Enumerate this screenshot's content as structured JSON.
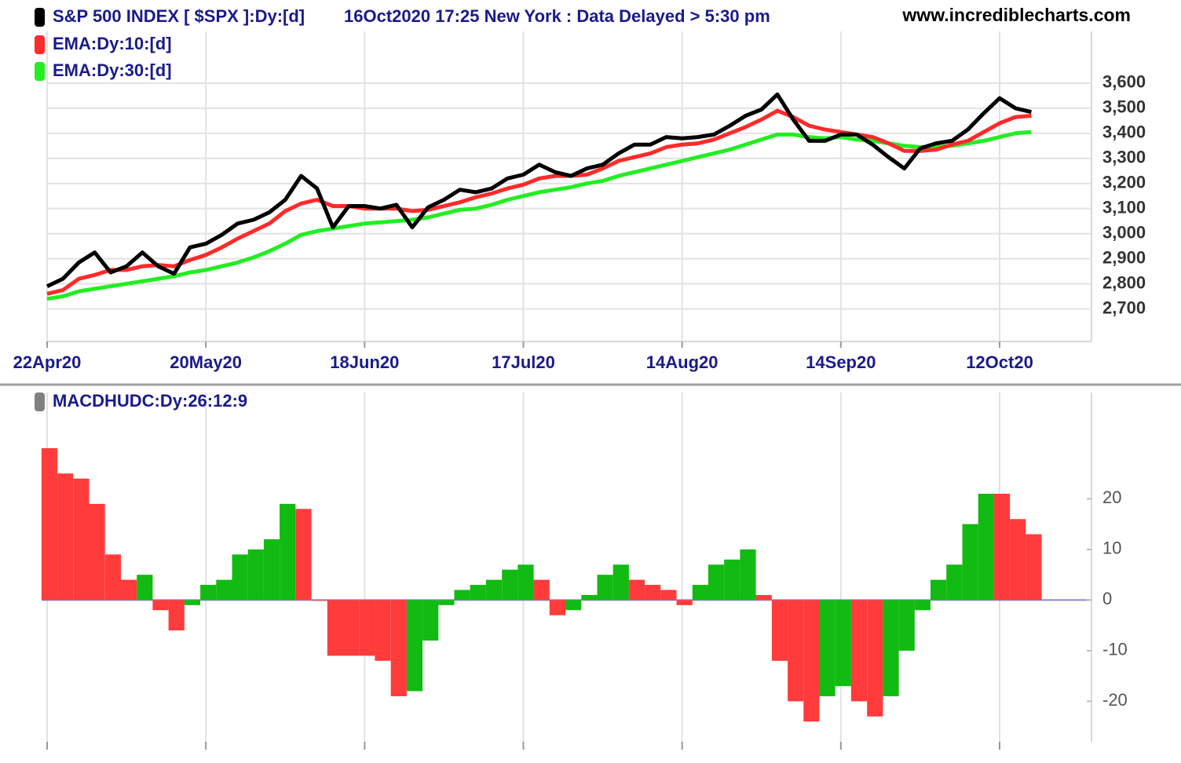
{
  "chart_data": [
    {
      "type": "line",
      "title": "S&P 500 INDEX [ $SPX ]:Dy:[d]",
      "subtitle": "16Oct2020 17:25 New York : Data Delayed > 5:30 pm",
      "source": "www.incrediblecharts.com",
      "categories": [
        "22Apr20",
        null,
        null,
        null,
        null,
        null,
        null,
        null,
        null,
        null,
        "20May20",
        null,
        null,
        null,
        null,
        null,
        null,
        null,
        null,
        null,
        "18Jun20",
        null,
        null,
        null,
        null,
        null,
        null,
        null,
        null,
        null,
        "17Jul20",
        null,
        null,
        null,
        null,
        null,
        null,
        null,
        null,
        null,
        "14Aug20",
        null,
        null,
        null,
        null,
        null,
        null,
        null,
        null,
        null,
        "14Sep20",
        null,
        null,
        null,
        null,
        null,
        null,
        null,
        null,
        null,
        "12Oct20",
        null,
        null
      ],
      "series": [
        {
          "name": "S&P 500 INDEX [ $SPX ]:Dy:[d]",
          "color": "#000000",
          "values": [
            2790,
            2820,
            2885,
            2925,
            2845,
            2870,
            2925,
            2870,
            2840,
            2945,
            2960,
            2995,
            3040,
            3055,
            3085,
            3135,
            3230,
            3180,
            3025,
            3110,
            3110,
            3100,
            3115,
            3025,
            3105,
            3135,
            3175,
            3165,
            3180,
            3220,
            3235,
            3275,
            3245,
            3230,
            3260,
            3275,
            3320,
            3355,
            3355,
            3385,
            3380,
            3385,
            3395,
            3430,
            3470,
            3495,
            3555,
            3455,
            3370,
            3370,
            3395,
            3395,
            3355,
            3305,
            3260,
            3340,
            3360,
            3370,
            3415,
            3480,
            3540,
            3500,
            3485
          ]
        },
        {
          "name": "EMA:Dy:10:[d]",
          "color": "#ff2a2a",
          "values": [
            2760,
            2775,
            2820,
            2835,
            2855,
            2855,
            2870,
            2875,
            2870,
            2895,
            2915,
            2945,
            2980,
            3010,
            3040,
            3090,
            3120,
            3135,
            3110,
            3110,
            3100,
            3100,
            3100,
            3090,
            3095,
            3110,
            3125,
            3145,
            3160,
            3180,
            3195,
            3220,
            3230,
            3230,
            3235,
            3260,
            3290,
            3305,
            3320,
            3345,
            3355,
            3360,
            3375,
            3400,
            3425,
            3455,
            3490,
            3465,
            3430,
            3415,
            3405,
            3395,
            3385,
            3360,
            3330,
            3330,
            3335,
            3355,
            3370,
            3405,
            3440,
            3465,
            3470
          ]
        },
        {
          "name": "EMA:Dy:30:[d]",
          "color": "#22ee22",
          "values": [
            2740,
            2750,
            2770,
            2780,
            2790,
            2800,
            2810,
            2820,
            2830,
            2845,
            2855,
            2870,
            2885,
            2905,
            2930,
            2960,
            2995,
            3010,
            3020,
            3030,
            3040,
            3045,
            3050,
            3055,
            3065,
            3080,
            3095,
            3100,
            3115,
            3135,
            3150,
            3165,
            3175,
            3185,
            3200,
            3210,
            3230,
            3245,
            3260,
            3275,
            3290,
            3305,
            3320,
            3335,
            3355,
            3375,
            3395,
            3395,
            3385,
            3380,
            3385,
            3375,
            3370,
            3360,
            3350,
            3345,
            3345,
            3350,
            3360,
            3370,
            3385,
            3400,
            3405
          ]
        }
      ],
      "ylim": [
        2570,
        3750
      ],
      "yticks": [
        {
          "value": 2700,
          "label": "2,700"
        },
        {
          "value": 2800,
          "label": "2,800"
        },
        {
          "value": 2900,
          "label": "2,900"
        },
        {
          "value": 3000,
          "label": "3,000"
        },
        {
          "value": 3100,
          "label": "3,100"
        },
        {
          "value": 3200,
          "label": "3,200"
        },
        {
          "value": 3300,
          "label": "3,300"
        },
        {
          "value": 3400,
          "label": "3,400"
        },
        {
          "value": 3500,
          "label": "3,500"
        },
        {
          "value": 3600,
          "label": "3,600"
        }
      ],
      "grid": true
    },
    {
      "type": "bar",
      "title": "MACDHUDC:Dy:26:12:9",
      "up_color": "#11bb11",
      "down_color": "#ff3b3b",
      "zero_line_color": "#8888cc",
      "values": [
        30,
        25,
        24,
        19,
        9,
        4,
        5,
        -2,
        -6,
        -1,
        3,
        4,
        9,
        10,
        12,
        19,
        18,
        0,
        -11,
        -11,
        -11,
        -12,
        -19,
        -18,
        -8,
        -1,
        2,
        3,
        4,
        6,
        7,
        4,
        -3,
        -2,
        1,
        5,
        7,
        4,
        3,
        2,
        -1,
        3,
        7,
        8,
        10,
        1,
        -12,
        -20,
        -24,
        -19,
        -17,
        -20,
        -23,
        -19,
        -10,
        -2,
        4,
        7,
        15,
        21,
        21,
        16,
        13
      ],
      "ylim": [
        -28,
        41
      ],
      "yticks": [
        -20,
        -10,
        0,
        10,
        20
      ],
      "grid": true
    }
  ]
}
